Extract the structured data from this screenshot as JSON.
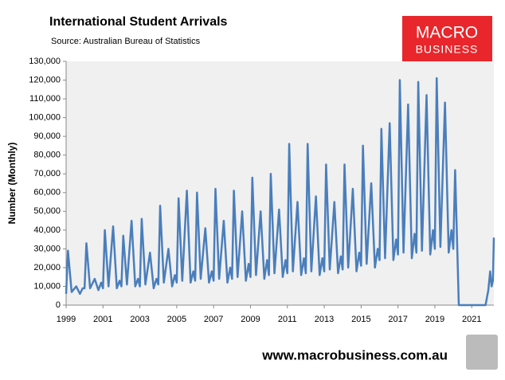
{
  "chart_data": {
    "type": "line",
    "title": "International Student Arrivals",
    "subtitle": "Source: Australian Bureau of Statistics",
    "y_label": "Number (Monthly)",
    "logo_text": [
      "MACRO",
      "BUSINESS"
    ],
    "footer": "www.macrobusiness.com.au",
    "background": "#f0f0f0",
    "xlim": [
      1999,
      2022.2
    ],
    "xticks": [
      1999,
      2001,
      2003,
      2005,
      2007,
      2009,
      2011,
      2013,
      2015,
      2017,
      2019,
      2021
    ],
    "ylim": [
      0,
      130000
    ],
    "yticks": [
      0,
      {
        "value": 10000,
        "label": "10,000"
      },
      {
        "value": 20000,
        "label": "20,000"
      },
      {
        "value": 30000,
        "label": "30,000"
      },
      {
        "value": 40000,
        "label": "40,000"
      },
      {
        "value": 50000,
        "label": "50,000"
      },
      {
        "value": 60000,
        "label": "60,000"
      },
      {
        "value": 70000,
        "label": "70,000"
      },
      {
        "value": 80000,
        "label": "80,000"
      },
      {
        "value": 90000,
        "label": "90,000"
      },
      {
        "value": 100000,
        "label": "100,000"
      },
      {
        "value": 110000,
        "label": "110,000"
      },
      {
        "value": 120000,
        "label": "120,000"
      },
      {
        "value": 130000,
        "label": "130,000"
      }
    ],
    "x": [
      1999,
      1999.1,
      1999.3,
      1999.55,
      1999.75,
      1999.9,
      2000,
      2000.1,
      2000.3,
      2000.55,
      2000.75,
      2000.9,
      2001,
      2001.1,
      2001.3,
      2001.55,
      2001.75,
      2001.9,
      2002,
      2002.1,
      2002.3,
      2002.55,
      2002.75,
      2002.9,
      2003,
      2003.1,
      2003.3,
      2003.55,
      2003.75,
      2003.9,
      2004,
      2004.1,
      2004.3,
      2004.55,
      2004.75,
      2004.9,
      2005,
      2005.1,
      2005.3,
      2005.55,
      2005.75,
      2005.9,
      2006,
      2006.1,
      2006.3,
      2006.55,
      2006.75,
      2006.9,
      2007,
      2007.1,
      2007.3,
      2007.55,
      2007.75,
      2007.9,
      2008,
      2008.1,
      2008.3,
      2008.55,
      2008.75,
      2008.9,
      2009,
      2009.1,
      2009.3,
      2009.55,
      2009.75,
      2009.9,
      2010,
      2010.1,
      2010.3,
      2010.55,
      2010.75,
      2010.9,
      2011,
      2011.1,
      2011.3,
      2011.55,
      2011.75,
      2011.9,
      2012,
      2012.1,
      2012.3,
      2012.55,
      2012.75,
      2012.9,
      2013,
      2013.1,
      2013.3,
      2013.55,
      2013.75,
      2013.9,
      2014,
      2014.1,
      2014.3,
      2014.55,
      2014.75,
      2014.9,
      2015,
      2015.1,
      2015.3,
      2015.55,
      2015.75,
      2015.9,
      2016,
      2016.1,
      2016.3,
      2016.55,
      2016.75,
      2016.9,
      2017,
      2017.1,
      2017.3,
      2017.55,
      2017.75,
      2017.9,
      2018,
      2018.1,
      2018.3,
      2018.55,
      2018.75,
      2018.9,
      2019,
      2019.1,
      2019.3,
      2019.55,
      2019.75,
      2019.9,
      2020,
      2020.1,
      2020.3,
      2020.55,
      2020.75,
      2020.9,
      2021,
      2021.1,
      2021.3,
      2021.55,
      2021.75,
      2021.9,
      2022,
      2022.08,
      2022.15,
      2022.2
    ],
    "series": [
      {
        "name": "International Student Arrivals",
        "color": "#4a7ebb",
        "values": [
          6000,
          29000,
          7000,
          10000,
          6000,
          9000,
          9000,
          33000,
          9000,
          14000,
          8000,
          12000,
          9000,
          40000,
          10000,
          42000,
          9000,
          13000,
          10000,
          37000,
          11000,
          45000,
          10000,
          14000,
          10000,
          46000,
          11000,
          28000,
          9000,
          14000,
          11000,
          53000,
          12000,
          30000,
          10000,
          16000,
          12000,
          57000,
          13000,
          61000,
          12000,
          18000,
          13000,
          60000,
          14000,
          41000,
          12000,
          18000,
          13000,
          62000,
          14000,
          45000,
          12000,
          20000,
          14000,
          61000,
          15000,
          50000,
          13000,
          22000,
          15000,
          68000,
          16000,
          50000,
          14000,
          24000,
          16000,
          70000,
          17000,
          51000,
          15000,
          24000,
          17000,
          86000,
          18000,
          55000,
          16000,
          25000,
          17000,
          86000,
          18000,
          58000,
          16000,
          25000,
          18000,
          75000,
          19000,
          55000,
          17000,
          26000,
          19000,
          75000,
          20000,
          62000,
          18000,
          28000,
          21000,
          85000,
          22000,
          65000,
          20000,
          30000,
          24000,
          94000,
          25000,
          97000,
          24000,
          35000,
          27000,
          120000,
          28000,
          107000,
          25000,
          38000,
          28000,
          119000,
          29000,
          112000,
          27000,
          40000,
          30000,
          121000,
          31000,
          108000,
          28000,
          40000,
          30000,
          72000,
          0,
          0,
          0,
          0,
          0,
          0,
          0,
          0,
          0,
          8000,
          18000,
          10000,
          13000,
          36000
        ]
      }
    ]
  }
}
